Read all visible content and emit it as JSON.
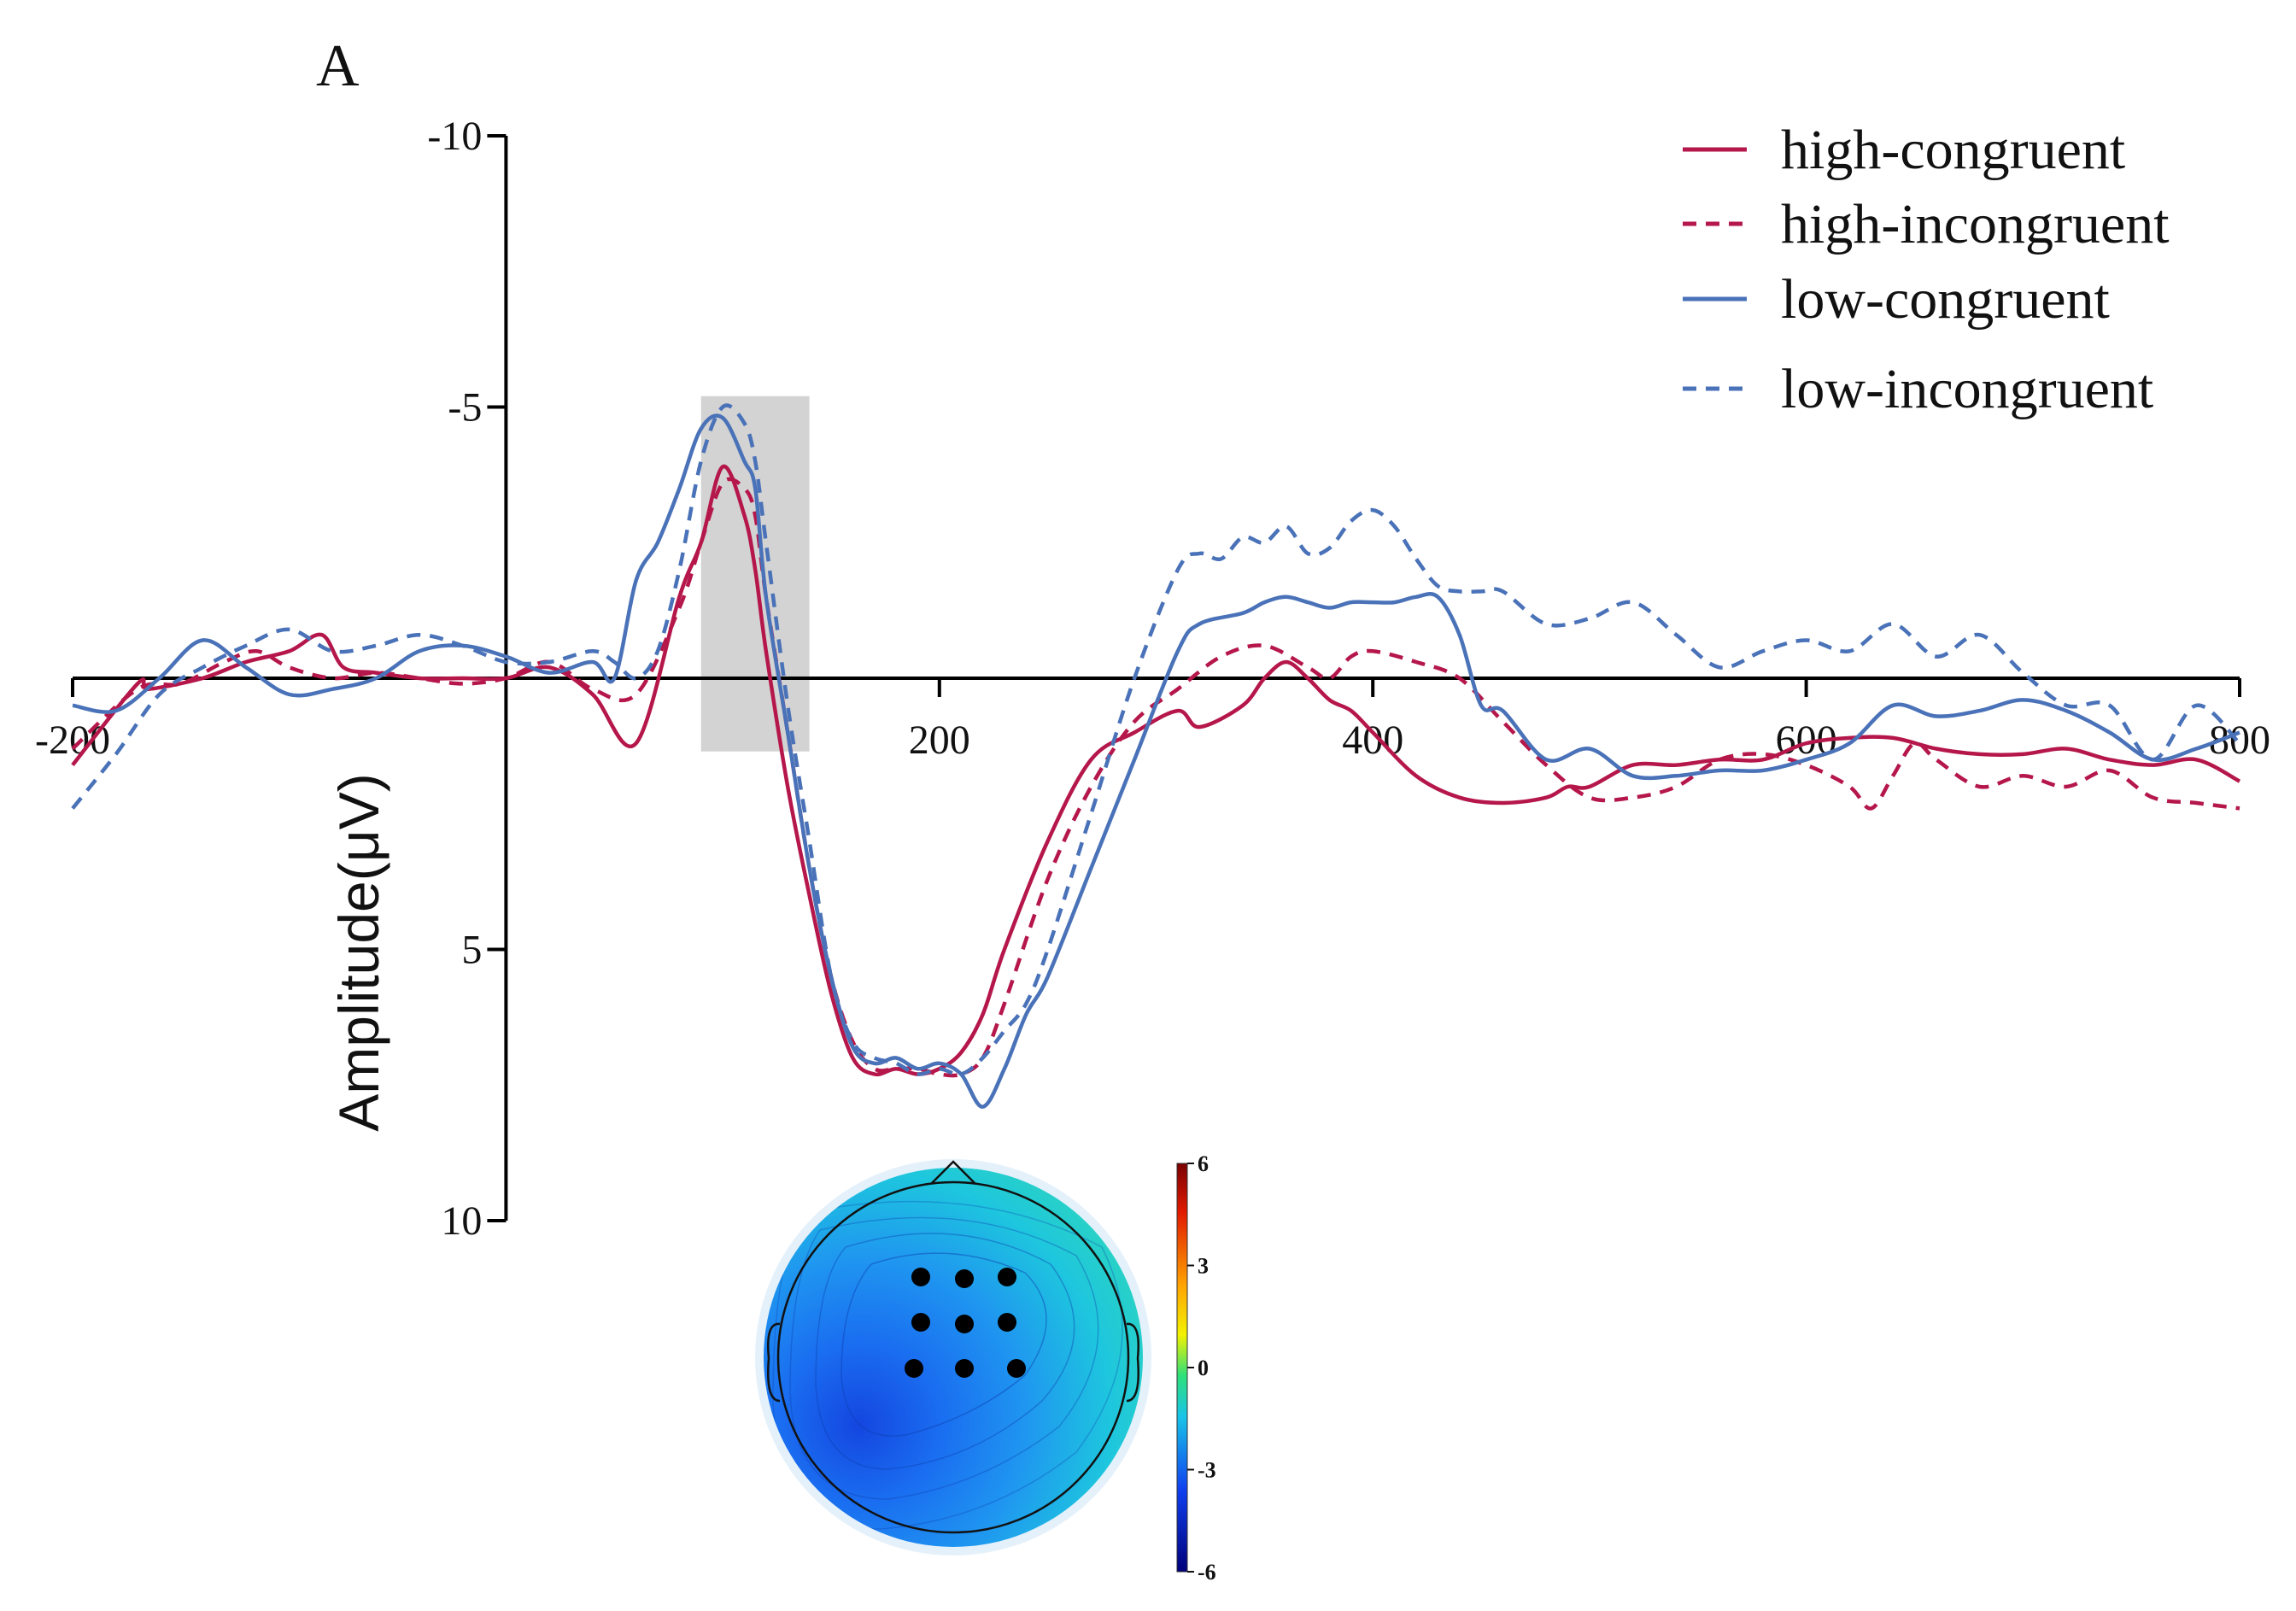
{
  "chart_data": {
    "type": "line",
    "panel_label": "A",
    "title": "",
    "xlabel": "",
    "ylabel": "Amplitude(μV)",
    "xlim": [
      -200,
      800
    ],
    "ylim": [
      -10,
      10
    ],
    "y_inverted": true,
    "x_ticks": [
      -200,
      200,
      400,
      600,
      800
    ],
    "x_tick_labels": [
      "-200",
      "200",
      "400",
      "600",
      "800"
    ],
    "y_ticks": [
      -10,
      -5,
      5,
      10
    ],
    "y_tick_labels": [
      "-10",
      "-5",
      "5",
      "10"
    ],
    "highlight_window": {
      "x": [
        90,
        140
      ],
      "y": [
        -5.2,
        1.35
      ]
    },
    "legend_position": "top-right",
    "series": [
      {
        "name": "high-congruent",
        "color": "#b5174b",
        "dash": "solid",
        "x": [
          -200,
          -170,
          -165,
          -140,
          -120,
          -100,
          -85,
          -75,
          -60,
          -40,
          -20,
          0,
          20,
          40,
          60,
          80,
          90,
          100,
          110,
          115,
          120,
          130,
          140,
          150,
          160,
          170,
          180,
          190,
          200,
          210,
          220,
          230,
          250,
          270,
          290,
          310,
          320,
          340,
          350,
          360,
          370,
          380,
          390,
          400,
          420,
          440,
          460,
          480,
          490,
          500,
          520,
          540,
          560,
          580,
          600,
          620,
          640,
          660,
          680,
          700,
          720,
          740,
          760,
          780,
          800
        ],
        "values": [
          1.6,
          0.1,
          0.2,
          0.0,
          -0.3,
          -0.5,
          -0.8,
          -0.2,
          -0.1,
          0.0,
          0.0,
          0.0,
          -0.2,
          0.3,
          1.2,
          -1.5,
          -2.5,
          -3.9,
          -3.0,
          -2.0,
          -0.5,
          2.0,
          4.0,
          5.8,
          7.0,
          7.3,
          7.2,
          7.3,
          7.2,
          6.9,
          6.2,
          5.0,
          3.0,
          1.5,
          1.0,
          0.6,
          0.9,
          0.5,
          0.0,
          -0.3,
          0.0,
          0.4,
          0.6,
          1.0,
          1.8,
          2.2,
          2.3,
          2.2,
          2.0,
          2.0,
          1.6,
          1.6,
          1.5,
          1.5,
          1.2,
          1.1,
          1.1,
          1.3,
          1.4,
          1.4,
          1.3,
          1.5,
          1.6,
          1.5,
          1.9
        ]
      },
      {
        "name": "high-incongruent",
        "color": "#b5174b",
        "dash": "dashed",
        "x": [
          -200,
          -170,
          -150,
          -130,
          -115,
          -100,
          -80,
          -60,
          -40,
          -20,
          0,
          20,
          40,
          60,
          80,
          90,
          100,
          110,
          115,
          120,
          130,
          140,
          150,
          160,
          170,
          180,
          190,
          200,
          210,
          220,
          230,
          250,
          270,
          290,
          310,
          330,
          350,
          370,
          380,
          390,
          400,
          420,
          440,
          460,
          480,
          500,
          520,
          540,
          560,
          580,
          600,
          620,
          630,
          640,
          650,
          660,
          680,
          700,
          720,
          740,
          760,
          780,
          800
        ],
        "values": [
          1.3,
          0.2,
          0.1,
          -0.3,
          -0.5,
          -0.2,
          0.0,
          -0.1,
          0.0,
          0.1,
          0.0,
          -0.3,
          0.2,
          0.3,
          -1.3,
          -2.5,
          -3.6,
          -3.5,
          -3.0,
          -1.5,
          1.0,
          3.5,
          5.5,
          6.7,
          7.2,
          7.2,
          7.2,
          7.3,
          7.3,
          7.0,
          6.0,
          3.7,
          2.0,
          0.8,
          0.2,
          -0.4,
          -0.6,
          -0.2,
          0.0,
          -0.4,
          -0.5,
          -0.3,
          0.0,
          0.8,
          1.6,
          2.2,
          2.2,
          2.0,
          1.5,
          1.4,
          1.6,
          2.0,
          2.4,
          1.8,
          1.2,
          1.5,
          2.0,
          1.8,
          2.0,
          1.7,
          2.2,
          2.3,
          2.4
        ]
      },
      {
        "name": "low-congruent",
        "color": "#4a72b8",
        "dash": "solid",
        "x": [
          -200,
          -180,
          -160,
          -140,
          -120,
          -100,
          -80,
          -60,
          -40,
          -20,
          0,
          20,
          40,
          50,
          60,
          70,
          80,
          90,
          100,
          110,
          115,
          120,
          130,
          140,
          150,
          160,
          170,
          180,
          190,
          200,
          210,
          220,
          230,
          240,
          250,
          270,
          290,
          310,
          320,
          340,
          350,
          360,
          370,
          380,
          390,
          400,
          410,
          420,
          430,
          440,
          450,
          460,
          480,
          500,
          520,
          540,
          560,
          580,
          600,
          620,
          640,
          660,
          680,
          700,
          720,
          740,
          760,
          780,
          800
        ],
        "values": [
          0.5,
          0.6,
          0.0,
          -0.7,
          -0.2,
          0.3,
          0.2,
          0.0,
          -0.5,
          -0.6,
          -0.4,
          -0.1,
          -0.3,
          0.0,
          -1.8,
          -2.5,
          -3.5,
          -4.6,
          -4.8,
          -4.0,
          -3.5,
          -1.5,
          1.0,
          3.5,
          5.5,
          6.8,
          7.1,
          7.0,
          7.2,
          7.1,
          7.3,
          7.9,
          7.2,
          6.2,
          5.5,
          3.5,
          1.5,
          -0.5,
          -1.0,
          -1.2,
          -1.4,
          -1.5,
          -1.4,
          -1.3,
          -1.4,
          -1.4,
          -1.4,
          -1.5,
          -1.5,
          -0.8,
          0.5,
          0.6,
          1.5,
          1.3,
          1.8,
          1.8,
          1.7,
          1.7,
          1.5,
          1.2,
          0.5,
          0.7,
          0.6,
          0.4,
          0.6,
          1.0,
          1.5,
          1.3,
          1.0
        ]
      },
      {
        "name": "low-incongruent",
        "color": "#4a72b8",
        "dash": "dashed",
        "x": [
          -200,
          -180,
          -160,
          -140,
          -120,
          -100,
          -80,
          -60,
          -40,
          -20,
          0,
          20,
          40,
          50,
          60,
          70,
          80,
          90,
          100,
          110,
          115,
          120,
          130,
          140,
          150,
          160,
          170,
          180,
          190,
          200,
          210,
          220,
          230,
          240,
          250,
          270,
          290,
          310,
          320,
          330,
          340,
          350,
          360,
          370,
          380,
          390,
          400,
          410,
          420,
          430,
          440,
          450,
          460,
          480,
          500,
          520,
          540,
          560,
          580,
          600,
          620,
          640,
          660,
          680,
          700,
          720,
          740,
          760,
          780,
          800
        ],
        "values": [
          2.4,
          1.4,
          0.3,
          -0.2,
          -0.6,
          -0.9,
          -0.5,
          -0.6,
          -0.8,
          -0.6,
          -0.3,
          -0.3,
          -0.5,
          -0.3,
          0.0,
          -0.5,
          -2.0,
          -4.0,
          -5.0,
          -4.7,
          -4.0,
          -2.5,
          0.5,
          3.0,
          5.5,
          6.7,
          7.0,
          7.1,
          7.3,
          7.2,
          7.3,
          7.0,
          6.5,
          6.0,
          5.0,
          2.5,
          0.0,
          -2.0,
          -2.3,
          -2.2,
          -2.6,
          -2.5,
          -2.8,
          -2.3,
          -2.4,
          -2.9,
          -3.1,
          -2.8,
          -2.2,
          -1.7,
          -1.6,
          -1.6,
          -1.6,
          -1.0,
          -1.1,
          -1.4,
          -0.8,
          -0.2,
          -0.5,
          -0.7,
          -0.5,
          -1.0,
          -0.4,
          -0.8,
          -0.1,
          0.5,
          0.5,
          1.5,
          0.5,
          1.2
        ]
      }
    ],
    "topomap": {
      "colorbar_ticks": [
        "6",
        "3",
        "0",
        "-3",
        "-6"
      ],
      "colorbar_range": [
        -6,
        6
      ],
      "electrode_count": 9
    }
  }
}
